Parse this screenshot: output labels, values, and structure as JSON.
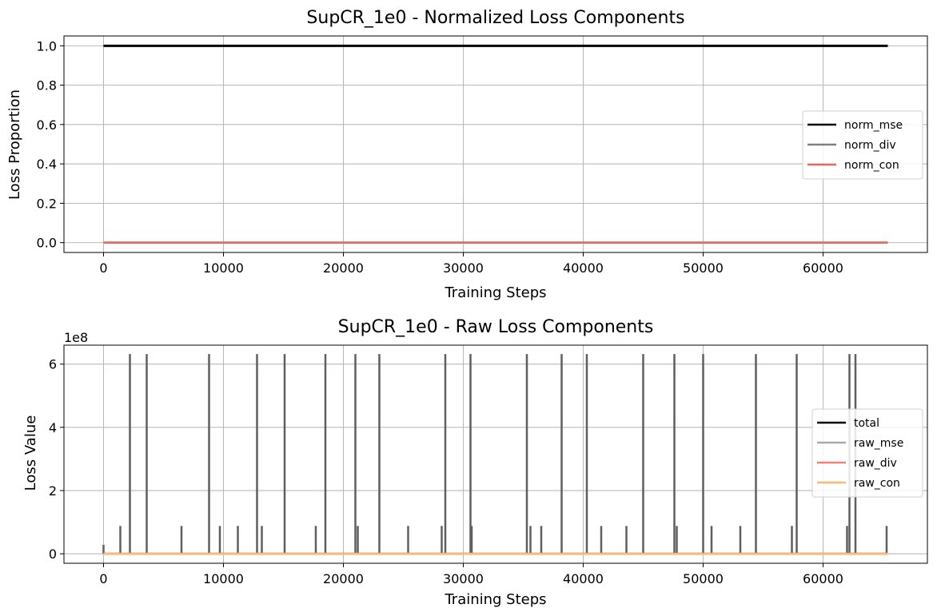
{
  "chart_data": [
    {
      "type": "line",
      "title": "SupCR_1e0 - Normalized Loss Components",
      "xlabel": "Training Steps",
      "ylabel": "Loss Proportion",
      "xlim": [
        -3300,
        68700
      ],
      "ylim": [
        -0.05,
        1.05
      ],
      "xticks": [
        0,
        10000,
        20000,
        30000,
        40000,
        50000,
        60000
      ],
      "xtick_labels": [
        "0",
        "10000",
        "20000",
        "30000",
        "40000",
        "50000",
        "60000"
      ],
      "yticks": [
        0.0,
        0.2,
        0.4,
        0.6,
        0.8,
        1.0
      ],
      "ytick_labels": [
        "0.0",
        "0.2",
        "0.4",
        "0.6",
        "0.8",
        "1.0"
      ],
      "grid": true,
      "legend": "center-right",
      "series": [
        {
          "name": "norm_mse",
          "color": "#000000",
          "x": [
            0,
            65400
          ],
          "y": [
            1.0,
            1.0
          ]
        },
        {
          "name": "norm_div",
          "color": "#808080",
          "x": [
            0,
            65400
          ],
          "y": [
            0.0,
            0.0
          ]
        },
        {
          "name": "norm_con",
          "color": "#e8675a",
          "x": [
            0,
            65400
          ],
          "y": [
            0.0,
            0.0
          ]
        }
      ]
    },
    {
      "type": "line",
      "title": "SupCR_1e0 - Raw Loss Components",
      "xlabel": "Training Steps",
      "ylabel": "Loss Value",
      "offset_text": "1e8",
      "xlim": [
        -3300,
        68700
      ],
      "ylim": [
        -0.3,
        6.6
      ],
      "xticks": [
        0,
        10000,
        20000,
        30000,
        40000,
        50000,
        60000
      ],
      "xtick_labels": [
        "0",
        "10000",
        "20000",
        "30000",
        "40000",
        "50000",
        "60000"
      ],
      "yticks": [
        0,
        2,
        4,
        6
      ],
      "ytick_labels": [
        "0",
        "2",
        "4",
        "6"
      ],
      "grid": true,
      "legend": "center-right",
      "spikes": {
        "color": "#5f5f5f",
        "high_value": 6.32,
        "high_x": [
          2200,
          3600,
          8800,
          12800,
          15100,
          18500,
          21000,
          23000,
          28500,
          30600,
          35300,
          38200,
          40300,
          45000,
          47600,
          50000,
          54400,
          57800,
          62200,
          62700
        ],
        "low_value": 0.88,
        "low_x": [
          1400,
          6500,
          9700,
          11200,
          13200,
          17700,
          21200,
          25400,
          28200,
          30700,
          35600,
          36500,
          41500,
          43600,
          47800,
          50700,
          53100,
          57400,
          62000,
          65300
        ],
        "start_value": 0.28,
        "start_x": 0
      },
      "series": [
        {
          "name": "total",
          "color": "#000000",
          "x": [
            0,
            65400
          ],
          "y": [
            0.0,
            0.0
          ]
        },
        {
          "name": "raw_mse",
          "color": "#a9a9a9",
          "x": [
            0,
            65400
          ],
          "y": [
            0.0,
            0.0
          ]
        },
        {
          "name": "raw_div",
          "color": "#f08080",
          "x": [
            0,
            65400
          ],
          "y": [
            0.0,
            0.0
          ]
        },
        {
          "name": "raw_con",
          "color": "#ffb870",
          "x": [
            0,
            65400
          ],
          "y": [
            0.0,
            0.0
          ]
        }
      ]
    }
  ]
}
